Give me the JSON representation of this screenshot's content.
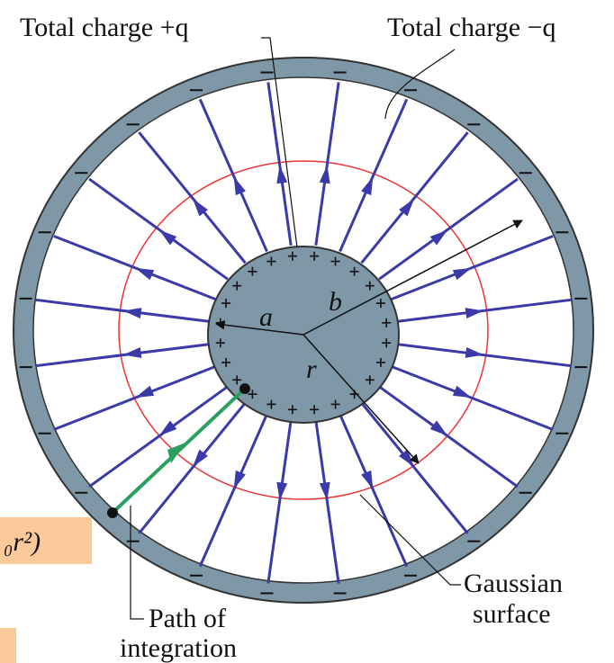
{
  "labels": {
    "charge_inner": "Total charge +q",
    "charge_outer": "Total charge −q",
    "a": "a",
    "b": "b",
    "r": "r",
    "gaussian": [
      "Gaussian",
      "surface"
    ],
    "path": [
      "Path of",
      "integration"
    ],
    "formula": "₀r²)"
  }
}
